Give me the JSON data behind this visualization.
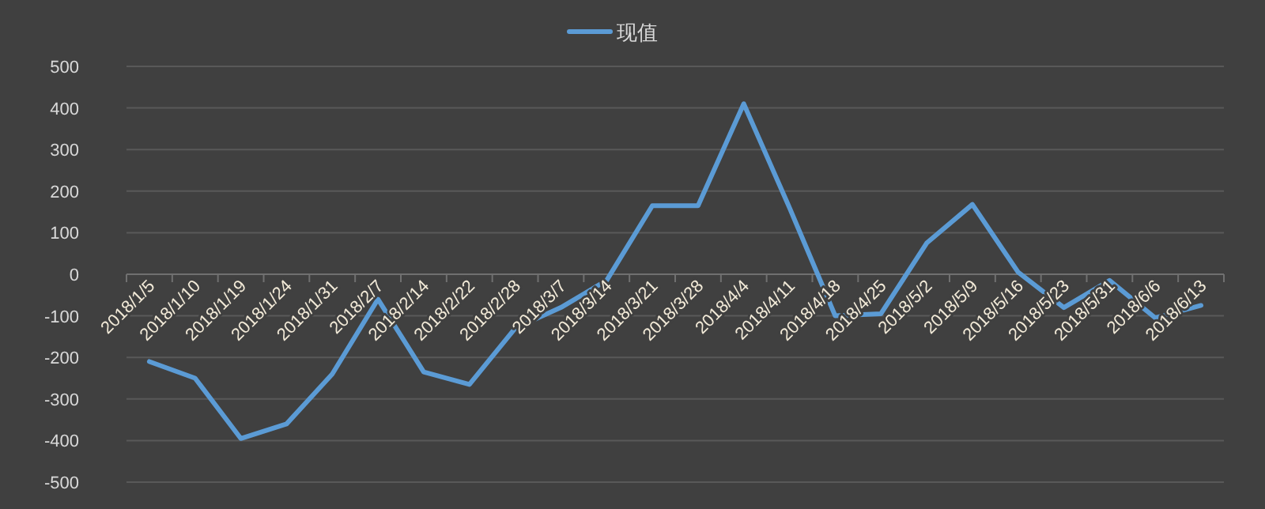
{
  "chart_data": {
    "type": "line",
    "legend": "top",
    "grid": "y",
    "marker": "none",
    "line_style": "solid",
    "categories": [
      "2018/1/5",
      "2018/1/10",
      "2018/1/19",
      "2018/1/24",
      "2018/1/31",
      "2018/2/7",
      "2018/2/14",
      "2018/2/22",
      "2018/2/28",
      "2018/3/7",
      "2018/3/14",
      "2018/3/21",
      "2018/3/28",
      "2018/4/4",
      "2018/4/11",
      "2018/4/18",
      "2018/4/25",
      "2018/5/2",
      "2018/5/9",
      "2018/5/16",
      "2018/5/23",
      "2018/5/31",
      "2018/6/6",
      "2018/6/13"
    ],
    "series": [
      {
        "name": "现值",
        "color": "#5b9bd5",
        "values": [
          -210,
          -250,
          -395,
          -360,
          -240,
          -60,
          -235,
          -265,
          -130,
          -80,
          -15,
          165,
          165,
          410,
          160,
          -100,
          -95,
          75,
          168,
          5,
          -80,
          -15,
          -105,
          -75
        ]
      }
    ],
    "ylim": [
      -500,
      500
    ],
    "yticks": [
      -500,
      -400,
      -300,
      -200,
      -100,
      0,
      100,
      200,
      300,
      400,
      500
    ]
  }
}
